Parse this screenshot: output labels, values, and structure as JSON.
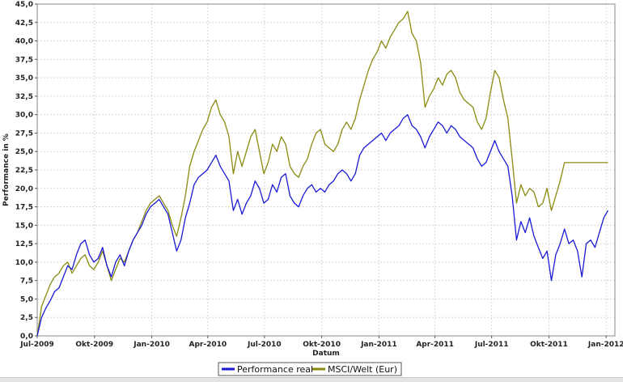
{
  "chart_data": {
    "type": "line",
    "title": "",
    "xlabel": "Datum",
    "ylabel": "Performance in %",
    "ylim": [
      0,
      45
    ],
    "yticks": [
      "0,0",
      "2,5",
      "5,0",
      "7,5",
      "10,0",
      "12,5",
      "15,0",
      "17,5",
      "20,0",
      "22,5",
      "25,0",
      "27,5",
      "30,0",
      "32,5",
      "35,0",
      "37,5",
      "40,0",
      "42,5",
      "45,0"
    ],
    "xlim": [
      "2009-07-01",
      "2012-01-15"
    ],
    "xticks": [
      {
        "date": "2009-07-01",
        "label": "Jul-2009"
      },
      {
        "date": "2009-10-01",
        "label": "Okt-2009"
      },
      {
        "date": "2010-01-01",
        "label": "Jan-2010"
      },
      {
        "date": "2010-04-01",
        "label": "Apr-2010"
      },
      {
        "date": "2010-07-01",
        "label": "Jul-2010"
      },
      {
        "date": "2010-10-01",
        "label": "Okt-2010"
      },
      {
        "date": "2011-01-01",
        "label": "Jan-2011"
      },
      {
        "date": "2011-04-01",
        "label": "Apr-2011"
      },
      {
        "date": "2011-07-01",
        "label": "Jul-2011"
      },
      {
        "date": "2011-10-01",
        "label": "Okt-2011"
      },
      {
        "date": "2012-01-01",
        "label": "Jan-2012"
      }
    ],
    "grid": true,
    "legend_position": "bottom",
    "series": [
      {
        "name": "Performance real",
        "color": "#1a1ad6",
        "points": [
          [
            "2009-07-01",
            0
          ],
          [
            "2009-07-08",
            2.5
          ],
          [
            "2009-07-15",
            3.8
          ],
          [
            "2009-07-22",
            4.8
          ],
          [
            "2009-07-29",
            6.0
          ],
          [
            "2009-08-05",
            6.5
          ],
          [
            "2009-08-12",
            8.0
          ],
          [
            "2009-08-19",
            9.5
          ],
          [
            "2009-08-26",
            9.0
          ],
          [
            "2009-09-02",
            11.0
          ],
          [
            "2009-09-09",
            12.5
          ],
          [
            "2009-09-16",
            13.0
          ],
          [
            "2009-09-23",
            11.0
          ],
          [
            "2009-09-30",
            10.0
          ],
          [
            "2009-10-07",
            10.5
          ],
          [
            "2009-10-14",
            12.0
          ],
          [
            "2009-10-21",
            9.5
          ],
          [
            "2009-10-28",
            8.0
          ],
          [
            "2009-11-04",
            10.0
          ],
          [
            "2009-11-11",
            11.0
          ],
          [
            "2009-11-18",
            9.5
          ],
          [
            "2009-11-25",
            11.5
          ],
          [
            "2009-12-02",
            13.0
          ],
          [
            "2009-12-09",
            14.0
          ],
          [
            "2009-12-16",
            15.0
          ],
          [
            "2009-12-23",
            16.5
          ],
          [
            "2009-12-30",
            17.5
          ],
          [
            "2010-01-06",
            18.0
          ],
          [
            "2010-01-13",
            18.5
          ],
          [
            "2010-01-20",
            17.5
          ],
          [
            "2010-01-27",
            16.5
          ],
          [
            "2010-02-03",
            14.0
          ],
          [
            "2010-02-10",
            11.5
          ],
          [
            "2010-02-17",
            13.0
          ],
          [
            "2010-02-24",
            16.0
          ],
          [
            "2010-03-03",
            18.0
          ],
          [
            "2010-03-10",
            20.5
          ],
          [
            "2010-03-17",
            21.5
          ],
          [
            "2010-03-24",
            22.0
          ],
          [
            "2010-03-31",
            22.5
          ],
          [
            "2010-04-07",
            23.5
          ],
          [
            "2010-04-14",
            24.5
          ],
          [
            "2010-04-21",
            23.0
          ],
          [
            "2010-04-28",
            22.0
          ],
          [
            "2010-05-05",
            21.0
          ],
          [
            "2010-05-12",
            17.0
          ],
          [
            "2010-05-19",
            18.5
          ],
          [
            "2010-05-26",
            16.5
          ],
          [
            "2010-06-02",
            18.0
          ],
          [
            "2010-06-09",
            19.0
          ],
          [
            "2010-06-16",
            21.0
          ],
          [
            "2010-06-23",
            20.0
          ],
          [
            "2010-06-30",
            18.0
          ],
          [
            "2010-07-07",
            18.5
          ],
          [
            "2010-07-14",
            20.5
          ],
          [
            "2010-07-21",
            19.5
          ],
          [
            "2010-07-28",
            21.5
          ],
          [
            "2010-08-04",
            22.0
          ],
          [
            "2010-08-11",
            19.0
          ],
          [
            "2010-08-18",
            18.0
          ],
          [
            "2010-08-25",
            17.5
          ],
          [
            "2010-09-01",
            19.0
          ],
          [
            "2010-09-08",
            20.0
          ],
          [
            "2010-09-15",
            20.5
          ],
          [
            "2010-09-22",
            19.5
          ],
          [
            "2010-09-29",
            20.0
          ],
          [
            "2010-10-06",
            19.5
          ],
          [
            "2010-10-13",
            20.5
          ],
          [
            "2010-10-20",
            21.0
          ],
          [
            "2010-10-27",
            22.0
          ],
          [
            "2010-11-03",
            22.5
          ],
          [
            "2010-11-10",
            22.0
          ],
          [
            "2010-11-17",
            21.0
          ],
          [
            "2010-11-24",
            22.0
          ],
          [
            "2010-12-01",
            24.5
          ],
          [
            "2010-12-08",
            25.5
          ],
          [
            "2010-12-15",
            26.0
          ],
          [
            "2010-12-22",
            26.5
          ],
          [
            "2010-12-29",
            27.0
          ],
          [
            "2011-01-05",
            27.5
          ],
          [
            "2011-01-12",
            26.5
          ],
          [
            "2011-01-19",
            27.5
          ],
          [
            "2011-01-26",
            28.0
          ],
          [
            "2011-02-02",
            28.5
          ],
          [
            "2011-02-09",
            29.5
          ],
          [
            "2011-02-16",
            30.0
          ],
          [
            "2011-02-23",
            28.5
          ],
          [
            "2011-03-02",
            28.0
          ],
          [
            "2011-03-09",
            27.0
          ],
          [
            "2011-03-16",
            25.5
          ],
          [
            "2011-03-23",
            27.0
          ],
          [
            "2011-03-30",
            28.0
          ],
          [
            "2011-04-06",
            29.0
          ],
          [
            "2011-04-13",
            28.5
          ],
          [
            "2011-04-20",
            27.5
          ],
          [
            "2011-04-27",
            28.5
          ],
          [
            "2011-05-04",
            28.0
          ],
          [
            "2011-05-11",
            27.0
          ],
          [
            "2011-05-18",
            26.5
          ],
          [
            "2011-05-25",
            26.0
          ],
          [
            "2011-06-01",
            25.5
          ],
          [
            "2011-06-08",
            24.0
          ],
          [
            "2011-06-15",
            23.0
          ],
          [
            "2011-06-22",
            23.5
          ],
          [
            "2011-06-29",
            25.0
          ],
          [
            "2011-07-06",
            26.5
          ],
          [
            "2011-07-13",
            25.0
          ],
          [
            "2011-07-20",
            24.0
          ],
          [
            "2011-07-27",
            23.0
          ],
          [
            "2011-08-03",
            19.0
          ],
          [
            "2011-08-10",
            13.0
          ],
          [
            "2011-08-17",
            15.5
          ],
          [
            "2011-08-24",
            14.0
          ],
          [
            "2011-08-31",
            16.0
          ],
          [
            "2011-09-07",
            13.5
          ],
          [
            "2011-09-14",
            12.0
          ],
          [
            "2011-09-21",
            10.5
          ],
          [
            "2011-09-28",
            11.5
          ],
          [
            "2011-10-05",
            7.5
          ],
          [
            "2011-10-12",
            11.0
          ],
          [
            "2011-10-19",
            12.5
          ],
          [
            "2011-10-26",
            14.5
          ],
          [
            "2011-11-02",
            12.5
          ],
          [
            "2011-11-09",
            13.0
          ],
          [
            "2011-11-16",
            11.5
          ],
          [
            "2011-11-23",
            8.0
          ],
          [
            "2011-11-30",
            12.5
          ],
          [
            "2011-12-07",
            13.0
          ],
          [
            "2011-12-14",
            12.0
          ],
          [
            "2011-12-21",
            14.0
          ],
          [
            "2011-12-28",
            16.0
          ],
          [
            "2012-01-04",
            17.0
          ]
        ]
      },
      {
        "name": "MSCI/Welt (Eur)",
        "color": "#8a8a10",
        "points": [
          [
            "2009-07-01",
            0
          ],
          [
            "2009-07-08",
            4.0
          ],
          [
            "2009-07-15",
            5.5
          ],
          [
            "2009-07-22",
            7.0
          ],
          [
            "2009-07-29",
            8.0
          ],
          [
            "2009-08-05",
            8.5
          ],
          [
            "2009-08-12",
            9.5
          ],
          [
            "2009-08-19",
            10.0
          ],
          [
            "2009-08-26",
            8.5
          ],
          [
            "2009-09-02",
            9.5
          ],
          [
            "2009-09-09",
            10.5
          ],
          [
            "2009-09-16",
            11.0
          ],
          [
            "2009-09-23",
            9.5
          ],
          [
            "2009-09-30",
            9.0
          ],
          [
            "2009-10-07",
            10.0
          ],
          [
            "2009-10-14",
            11.5
          ],
          [
            "2009-10-21",
            9.5
          ],
          [
            "2009-10-28",
            7.5
          ],
          [
            "2009-11-04",
            9.0
          ],
          [
            "2009-11-11",
            10.5
          ],
          [
            "2009-11-18",
            10.0
          ],
          [
            "2009-11-25",
            11.5
          ],
          [
            "2009-12-02",
            13.0
          ],
          [
            "2009-12-09",
            14.0
          ],
          [
            "2009-12-16",
            15.5
          ],
          [
            "2009-12-23",
            17.0
          ],
          [
            "2009-12-30",
            18.0
          ],
          [
            "2010-01-06",
            18.5
          ],
          [
            "2010-01-13",
            19.0
          ],
          [
            "2010-01-20",
            18.0
          ],
          [
            "2010-01-27",
            17.0
          ],
          [
            "2010-02-03",
            15.0
          ],
          [
            "2010-02-10",
            13.5
          ],
          [
            "2010-02-17",
            16.0
          ],
          [
            "2010-02-24",
            19.0
          ],
          [
            "2010-03-03",
            23.0
          ],
          [
            "2010-03-10",
            25.0
          ],
          [
            "2010-03-17",
            26.5
          ],
          [
            "2010-03-24",
            28.0
          ],
          [
            "2010-03-31",
            29.0
          ],
          [
            "2010-04-07",
            31.0
          ],
          [
            "2010-04-14",
            32.0
          ],
          [
            "2010-04-21",
            30.0
          ],
          [
            "2010-04-28",
            29.0
          ],
          [
            "2010-05-05",
            27.0
          ],
          [
            "2010-05-12",
            22.0
          ],
          [
            "2010-05-19",
            25.0
          ],
          [
            "2010-05-26",
            23.0
          ],
          [
            "2010-06-02",
            25.0
          ],
          [
            "2010-06-09",
            27.0
          ],
          [
            "2010-06-16",
            28.0
          ],
          [
            "2010-06-23",
            25.0
          ],
          [
            "2010-06-30",
            22.0
          ],
          [
            "2010-07-07",
            23.5
          ],
          [
            "2010-07-14",
            26.0
          ],
          [
            "2010-07-21",
            25.0
          ],
          [
            "2010-07-28",
            27.0
          ],
          [
            "2010-08-04",
            26.0
          ],
          [
            "2010-08-11",
            23.0
          ],
          [
            "2010-08-18",
            22.0
          ],
          [
            "2010-08-25",
            21.5
          ],
          [
            "2010-09-01",
            23.0
          ],
          [
            "2010-09-08",
            24.0
          ],
          [
            "2010-09-15",
            26.0
          ],
          [
            "2010-09-22",
            27.5
          ],
          [
            "2010-09-29",
            28.0
          ],
          [
            "2010-10-06",
            26.0
          ],
          [
            "2010-10-13",
            25.5
          ],
          [
            "2010-10-20",
            25.0
          ],
          [
            "2010-10-27",
            26.0
          ],
          [
            "2010-11-03",
            28.0
          ],
          [
            "2010-11-10",
            29.0
          ],
          [
            "2010-11-17",
            28.0
          ],
          [
            "2010-11-24",
            29.5
          ],
          [
            "2010-12-01",
            32.0
          ],
          [
            "2010-12-08",
            34.0
          ],
          [
            "2010-12-15",
            36.0
          ],
          [
            "2010-12-22",
            37.5
          ],
          [
            "2010-12-29",
            38.5
          ],
          [
            "2011-01-05",
            40.0
          ],
          [
            "2011-01-12",
            39.0
          ],
          [
            "2011-01-19",
            40.5
          ],
          [
            "2011-01-26",
            41.5
          ],
          [
            "2011-02-02",
            42.5
          ],
          [
            "2011-02-09",
            43.0
          ],
          [
            "2011-02-16",
            44.0
          ],
          [
            "2011-02-23",
            41.0
          ],
          [
            "2011-03-02",
            40.0
          ],
          [
            "2011-03-09",
            37.0
          ],
          [
            "2011-03-16",
            31.0
          ],
          [
            "2011-03-23",
            32.5
          ],
          [
            "2011-03-30",
            33.5
          ],
          [
            "2011-04-06",
            35.0
          ],
          [
            "2011-04-13",
            34.0
          ],
          [
            "2011-04-20",
            35.5
          ],
          [
            "2011-04-27",
            36.0
          ],
          [
            "2011-05-04",
            35.0
          ],
          [
            "2011-05-11",
            33.0
          ],
          [
            "2011-05-18",
            32.0
          ],
          [
            "2011-05-25",
            31.5
          ],
          [
            "2011-06-01",
            31.0
          ],
          [
            "2011-06-08",
            29.0
          ],
          [
            "2011-06-15",
            28.0
          ],
          [
            "2011-06-22",
            29.5
          ],
          [
            "2011-06-29",
            33.0
          ],
          [
            "2011-07-06",
            36.0
          ],
          [
            "2011-07-13",
            35.0
          ],
          [
            "2011-07-20",
            32.0
          ],
          [
            "2011-07-27",
            29.5
          ],
          [
            "2011-08-03",
            24.0
          ],
          [
            "2011-08-10",
            18.0
          ],
          [
            "2011-08-17",
            20.5
          ],
          [
            "2011-08-24",
            19.0
          ],
          [
            "2011-08-31",
            20.0
          ],
          [
            "2011-09-07",
            19.5
          ],
          [
            "2011-09-14",
            17.5
          ],
          [
            "2011-09-21",
            18.0
          ],
          [
            "2011-09-28",
            20.0
          ],
          [
            "2011-10-05",
            17.0
          ],
          [
            "2011-10-12",
            19.0
          ],
          [
            "2011-10-19",
            21.0
          ],
          [
            "2011-10-26",
            23.5
          ],
          [
            "2011-11-02",
            23.5
          ],
          [
            "2011-11-09",
            23.5
          ],
          [
            "2011-11-16",
            23.5
          ],
          [
            "2011-11-23",
            23.5
          ],
          [
            "2011-11-30",
            23.5
          ],
          [
            "2011-12-07",
            23.5
          ],
          [
            "2011-12-14",
            23.5
          ],
          [
            "2011-12-21",
            23.5
          ],
          [
            "2011-12-28",
            23.5
          ],
          [
            "2012-01-04",
            23.5
          ]
        ]
      }
    ]
  }
}
